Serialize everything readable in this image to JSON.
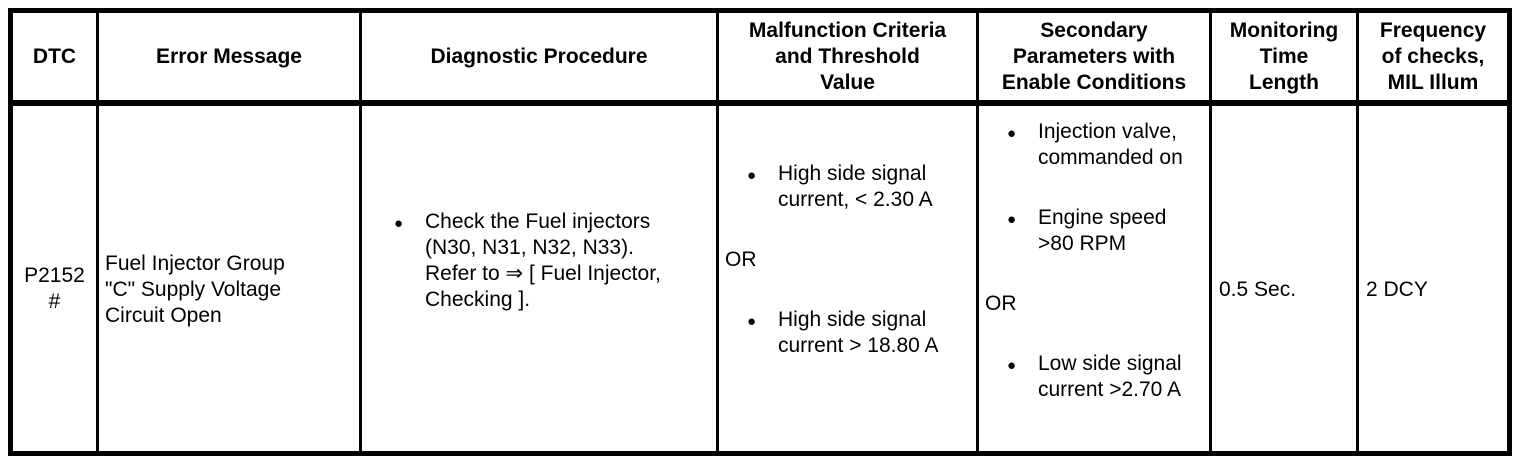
{
  "glyphs": {
    "bullet": "●"
  },
  "table": {
    "headers": [
      {
        "label": "DTC"
      },
      {
        "label": "Error Message"
      },
      {
        "label": "Diagnostic Procedure"
      },
      {
        "label": "Malfunction Criteria\nand Threshold\nValue"
      },
      {
        "label": "Secondary\nParameters with\nEnable Conditions"
      },
      {
        "label": "Monitoring\nTime\nLength"
      },
      {
        "label": "Frequency\nof checks,\nMIL Illum"
      }
    ],
    "row": {
      "dtc": "P2152\n#",
      "error_message": "Fuel Injector Group\n\"C\" Supply Voltage\nCircuit Open",
      "diagnostic_procedure": [
        {
          "type": "bullet",
          "text": "Check the Fuel injectors\n(N30, N31, N32, N33).\nRefer to ⇒ [ Fuel Injector,\nChecking ]."
        }
      ],
      "malfunction_criteria": [
        {
          "type": "bullet",
          "text": "High side signal\ncurrent, < 2.30 A"
        },
        {
          "type": "plain",
          "text": "OR"
        },
        {
          "type": "bullet",
          "text": "High side signal\ncurrent > 18.80 A"
        }
      ],
      "secondary_parameters": [
        {
          "type": "bullet",
          "text": "Injection valve,\ncommanded on"
        },
        {
          "type": "bullet",
          "text": "Engine speed\n>80 RPM"
        },
        {
          "type": "plain",
          "text": "OR"
        },
        {
          "type": "bullet",
          "text": "Low side signal\ncurrent >2.70 A"
        }
      ],
      "monitoring_time_length": "0.5 Sec.",
      "frequency_of_checks": "2 DCY"
    }
  }
}
